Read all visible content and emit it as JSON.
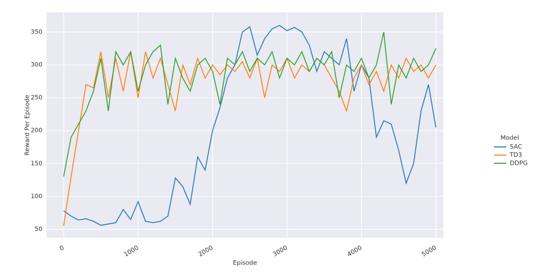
{
  "chart_data": {
    "type": "line",
    "x_label": "Episode",
    "y_label": "Reward Per Episode",
    "legend_title": "Model",
    "legend_position": "right",
    "x": [
      0,
      100,
      200,
      300,
      400,
      500,
      600,
      700,
      800,
      900,
      1000,
      1100,
      1200,
      1300,
      1400,
      1500,
      1600,
      1700,
      1800,
      1900,
      2000,
      2100,
      2200,
      2300,
      2400,
      2500,
      2600,
      2700,
      2800,
      2900,
      3000,
      3100,
      3200,
      3300,
      3400,
      3500,
      3600,
      3700,
      3800,
      3900,
      4000,
      4100,
      4200,
      4300,
      4400,
      4500,
      4600,
      4700,
      4800,
      4900,
      5000
    ],
    "series": [
      {
        "name": "SAC",
        "color": "#1f77b4",
        "values": [
          78,
          70,
          64,
          66,
          62,
          56,
          58,
          60,
          80,
          65,
          92,
          62,
          60,
          62,
          70,
          128,
          115,
          88,
          160,
          140,
          200,
          235,
          280,
          300,
          350,
          358,
          315,
          340,
          355,
          360,
          352,
          357,
          350,
          330,
          290,
          320,
          310,
          300,
          340,
          260,
          300,
          280,
          190,
          215,
          210,
          170,
          120,
          150,
          230,
          270,
          205
        ]
      },
      {
        "name": "TD3",
        "color": "#ff7f0e",
        "values": [
          55,
          130,
          200,
          270,
          265,
          320,
          250,
          310,
          260,
          320,
          250,
          320,
          280,
          310,
          270,
          230,
          300,
          270,
          310,
          280,
          300,
          285,
          300,
          290,
          305,
          280,
          310,
          250,
          300,
          290,
          310,
          280,
          300,
          290,
          310,
          300,
          280,
          260,
          230,
          280,
          300,
          270,
          290,
          260,
          300,
          280,
          310,
          290,
          300,
          280,
          300
        ]
      },
      {
        "name": "DDPG",
        "color": "#2ca02c",
        "values": [
          130,
          190,
          210,
          230,
          260,
          310,
          230,
          320,
          300,
          320,
          260,
          300,
          320,
          330,
          240,
          310,
          280,
          260,
          300,
          310,
          290,
          240,
          310,
          300,
          320,
          290,
          310,
          300,
          320,
          280,
          310,
          300,
          320,
          290,
          310,
          300,
          320,
          250,
          300,
          290,
          310,
          280,
          300,
          350,
          240,
          300,
          280,
          310,
          290,
          300,
          325
        ]
      }
    ],
    "xlim": [
      -230,
      5100
    ],
    "ylim": [
      37,
      380
    ],
    "xticks": [
      0,
      1000,
      2000,
      3000,
      4000,
      5000
    ],
    "yticks": [
      50,
      100,
      150,
      200,
      250,
      300,
      350
    ],
    "grid": true
  }
}
